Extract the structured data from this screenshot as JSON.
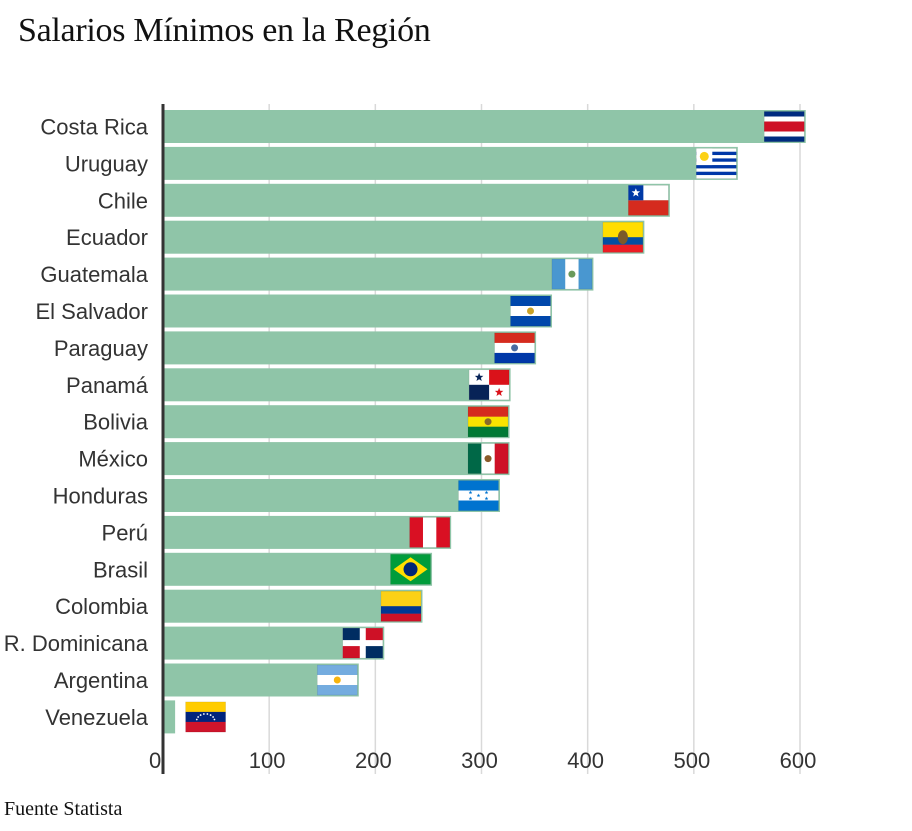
{
  "title": "Salarios Mínimos en la Región",
  "source": "Fuente Statista",
  "chart_data": {
    "type": "bar",
    "orientation": "horizontal",
    "title": "Salarios Mínimos en la Región",
    "xlabel": "",
    "ylabel": "",
    "xlim": [
      0,
      600
    ],
    "xticks": [
      0,
      100,
      200,
      300,
      400,
      500,
      600
    ],
    "grid": true,
    "bar_color": "#8fc5a8",
    "categories": [
      "Costa Rica",
      "Uruguay",
      "Chile",
      "Ecuador",
      "Guatemala",
      "El Salvador",
      "Paraguay",
      "Panamá",
      "Bolivia",
      "México",
      "Honduras",
      "Perú",
      "Brasil",
      "Colombia",
      "R. Dominicana",
      "Argentina",
      "Venezuela"
    ],
    "values": [
      604,
      540,
      476,
      452,
      404,
      365,
      350,
      326,
      325,
      325,
      316,
      270,
      252,
      243,
      207,
      183,
      10
    ],
    "flags": [
      "costa-rica-flag",
      "uruguay-flag",
      "chile-flag",
      "ecuador-flag",
      "guatemala-flag",
      "el-salvador-flag",
      "paraguay-flag",
      "panama-flag",
      "bolivia-flag",
      "mexico-flag",
      "honduras-flag",
      "peru-flag",
      "brazil-flag",
      "colombia-flag",
      "dominican-republic-flag",
      "argentina-flag",
      "venezuela-flag"
    ]
  }
}
